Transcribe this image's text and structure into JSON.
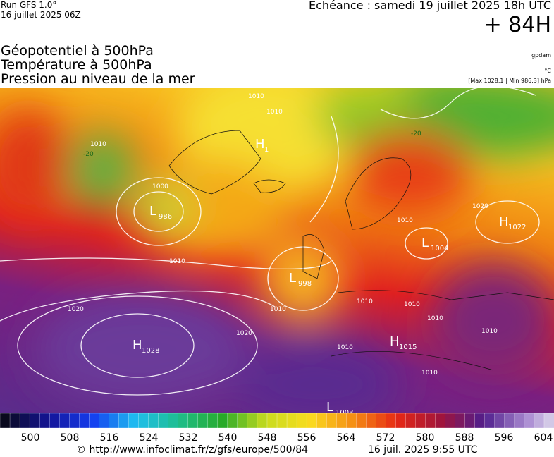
{
  "header": {
    "run": "Run GFS 1.0°",
    "run_date": "16 juillet 2025 06Z",
    "valid": "Echéance : samedi 19 juillet 2025 18h UTC",
    "lead": "+ 84H",
    "fields": [
      "Géopotentiel à 500hPa",
      "Température à 500hPa",
      "Pression au niveau de la mer"
    ],
    "units": [
      "gpdam",
      "°C",
      "[Max 1028.1 | Min 986.3] hPa"
    ]
  },
  "map": {
    "pressure_centers": [
      {
        "letter": "H",
        "value": 1
      },
      {
        "letter": "L",
        "value": 986
      },
      {
        "letter": "L",
        "value": 1004
      },
      {
        "letter": "H",
        "value": 1022
      },
      {
        "letter": "L",
        "value": 998
      },
      {
        "letter": "H",
        "value": 1028
      },
      {
        "letter": "H",
        "value": 1015
      },
      {
        "letter": "L",
        "value": 1003
      }
    ],
    "isoline_labels": [
      1010,
      1010,
      1010,
      -20,
      1000,
      1010,
      1020,
      1020,
      1010,
      1010,
      1010,
      1010,
      1010,
      1010,
      1010,
      1020,
      -20,
      1010
    ]
  },
  "colorbar": {
    "labels": [
      500,
      508,
      516,
      524,
      532,
      540,
      548,
      556,
      564,
      572,
      580,
      588,
      596,
      604
    ]
  },
  "footer": {
    "url": "© http://www.infoclimat.fr/z/gfs/europe/500/84",
    "timestamp": "16 juil. 2025  9:55 UTC"
  }
}
